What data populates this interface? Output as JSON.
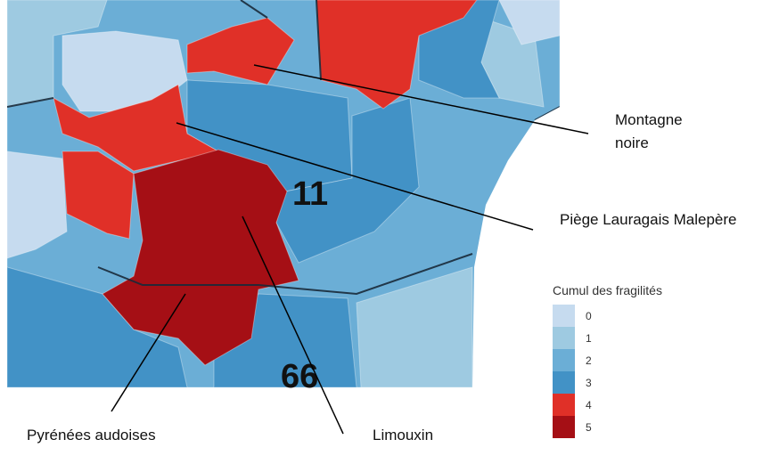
{
  "map": {
    "department_labels": [
      "11",
      "66"
    ],
    "annotations": [
      {
        "id": "montagne-noire",
        "lines": [
          "Montagne",
          "noire"
        ]
      },
      {
        "id": "piege-lauragais-malepere",
        "lines": [
          "Piège Lauragais Malepère"
        ]
      },
      {
        "id": "pyrenees-audoises",
        "lines": [
          "Pyrénées audoises"
        ]
      },
      {
        "id": "limouxin",
        "lines": [
          "Limouxin"
        ]
      }
    ]
  },
  "legend": {
    "title": "Cumul des fragilités",
    "items": [
      {
        "label": "0",
        "color": "#c6dbef"
      },
      {
        "label": "1",
        "color": "#9ecae1"
      },
      {
        "label": "2",
        "color": "#6baed6"
      },
      {
        "label": "3",
        "color": "#4292c6"
      },
      {
        "label": "4",
        "color": "#e03028"
      },
      {
        "label": "5",
        "color": "#a50f15"
      }
    ]
  }
}
